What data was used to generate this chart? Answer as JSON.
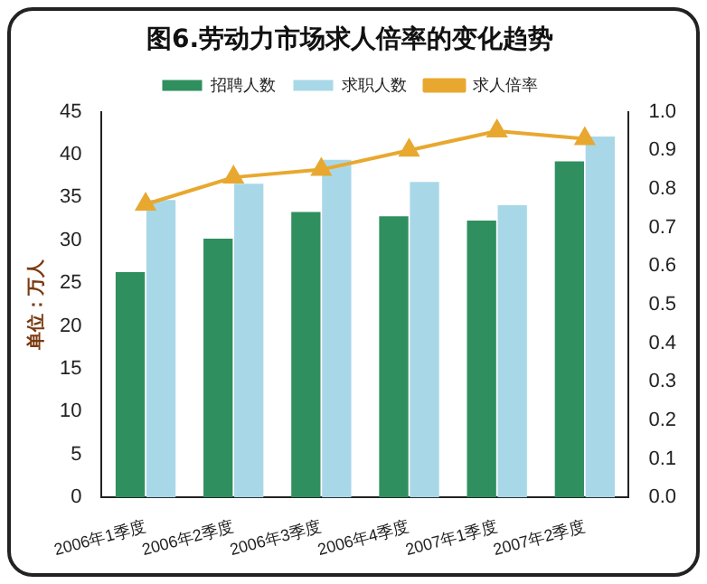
{
  "chart_data": {
    "type": "bar",
    "title": "图6.劳动力市场求人倍率的变化趋势",
    "ylabel": "单位：万人",
    "categories": [
      "2006年1季度",
      "2006年2季度",
      "2006年3季度",
      "2006年4季度",
      "2007年1季度",
      "2007年2季度"
    ],
    "series": [
      {
        "name": "招聘人数",
        "color": "#2f8f5f",
        "values": [
          26.3,
          30.2,
          33.3,
          32.8,
          32.3,
          39.2
        ]
      },
      {
        "name": "求职人数",
        "color": "#a8d8e8",
        "values": [
          34.7,
          36.6,
          39.4,
          36.8,
          34.1,
          42.1
        ]
      },
      {
        "name": "求人倍率",
        "type": "line",
        "axis": "y2",
        "color": "#e8a830",
        "values": [
          0.76,
          0.83,
          0.85,
          0.9,
          0.95,
          0.93
        ]
      }
    ],
    "ylim": [
      0,
      45
    ],
    "yticks": [
      0,
      5,
      10,
      15,
      20,
      25,
      30,
      35,
      40,
      45
    ],
    "y2lim": [
      0,
      1
    ],
    "y2ticks": [
      {
        "value": 0,
        "label": "0.0"
      },
      {
        "value": 0.1,
        "label": "0.1"
      },
      {
        "value": 0.2,
        "label": "0.2"
      },
      {
        "value": 0.3,
        "label": "0.3"
      },
      {
        "value": 0.4,
        "label": "0.4"
      },
      {
        "value": 0.5,
        "label": "0.5"
      },
      {
        "value": 0.6,
        "label": "0.6"
      },
      {
        "value": 0.7,
        "label": "0.7"
      },
      {
        "value": 0.8,
        "label": "0.8"
      },
      {
        "value": 0.9,
        "label": "0.9"
      },
      {
        "value": 1,
        "label": "1.0"
      }
    ],
    "grid": false,
    "legend": "top",
    "marker": "triangle",
    "line_style": "solid"
  }
}
